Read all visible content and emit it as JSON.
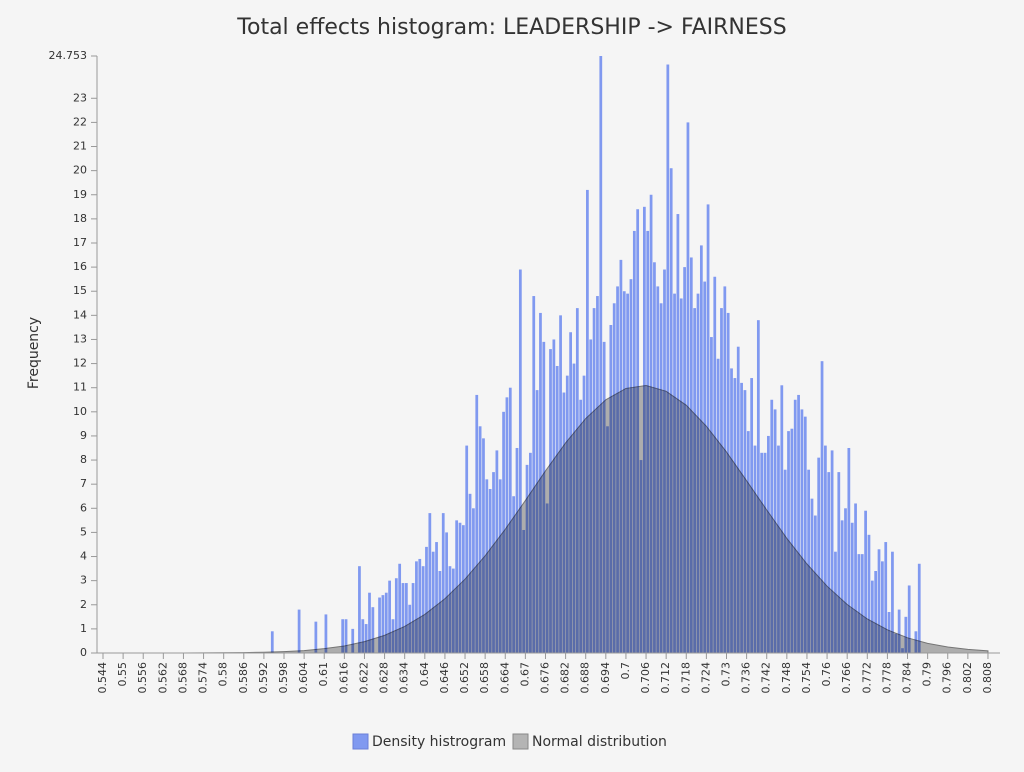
{
  "chart_data": {
    "type": "histogram",
    "title": "Total effects histogram: LEADERSHIP -> FAIRNESS",
    "ylabel": "Frequency",
    "xlim": [
      0.544,
      0.8115
    ],
    "ylim": [
      0,
      24.753
    ],
    "xticks": [
      0.544,
      0.55,
      0.556,
      0.562,
      0.568,
      0.574,
      0.58,
      0.586,
      0.592,
      0.598,
      0.604,
      0.61,
      0.616,
      0.622,
      0.628,
      0.634,
      0.64,
      0.646,
      0.652,
      0.658,
      0.664,
      0.67,
      0.676,
      0.682,
      0.688,
      0.694,
      0.7,
      0.706,
      0.712,
      0.718,
      0.724,
      0.73,
      0.736,
      0.742,
      0.748,
      0.754,
      0.76,
      0.766,
      0.772,
      0.778,
      0.784,
      0.79,
      0.796,
      0.802,
      0.808
    ],
    "yticks": [
      0,
      1,
      2,
      3,
      4,
      5,
      6,
      7,
      8,
      9,
      10,
      11,
      12,
      13,
      14,
      15,
      16,
      17,
      18,
      19,
      20,
      21,
      22,
      23,
      24.753
    ],
    "legend": "bottom",
    "series": [
      {
        "name": "Density histrogram",
        "color": "#8099f0",
        "bins": [
          0.594,
          0.595,
          0.596,
          0.597,
          0.598,
          0.599,
          0.6,
          0.601,
          0.602,
          0.603,
          0.604,
          0.605,
          0.606,
          0.607,
          0.608,
          0.609,
          0.61,
          0.611,
          0.612,
          0.613,
          0.614,
          0.615,
          0.616,
          0.617,
          0.618,
          0.619,
          0.62,
          0.621,
          0.622,
          0.623,
          0.624,
          0.625,
          0.626,
          0.627,
          0.628,
          0.629,
          0.63,
          0.631,
          0.632,
          0.633,
          0.634,
          0.635,
          0.636,
          0.637,
          0.638,
          0.639,
          0.64,
          0.641,
          0.642,
          0.643,
          0.644,
          0.645,
          0.646,
          0.647,
          0.648,
          0.649,
          0.65,
          0.651,
          0.652,
          0.653,
          0.654,
          0.655,
          0.656,
          0.657,
          0.658,
          0.659,
          0.66,
          0.661,
          0.662,
          0.663,
          0.664,
          0.665,
          0.666,
          0.667,
          0.668,
          0.669,
          0.67,
          0.671,
          0.672,
          0.673,
          0.674,
          0.675,
          0.676,
          0.677,
          0.678,
          0.679,
          0.68,
          0.681,
          0.682,
          0.683,
          0.684,
          0.685,
          0.686,
          0.687,
          0.688,
          0.689,
          0.69,
          0.691,
          0.692,
          0.693,
          0.694,
          0.695,
          0.696,
          0.697,
          0.698,
          0.699,
          0.7,
          0.701,
          0.702,
          0.703,
          0.704,
          0.705,
          0.706,
          0.707,
          0.708,
          0.709,
          0.71,
          0.711,
          0.712,
          0.713,
          0.714,
          0.715,
          0.716,
          0.717,
          0.718,
          0.719,
          0.72,
          0.721,
          0.722,
          0.723,
          0.724,
          0.725,
          0.726,
          0.727,
          0.728,
          0.729,
          0.73,
          0.731,
          0.732,
          0.733,
          0.734,
          0.735,
          0.736,
          0.737,
          0.738,
          0.739,
          0.74,
          0.741,
          0.742,
          0.743,
          0.744,
          0.745,
          0.746,
          0.747,
          0.748,
          0.749,
          0.75,
          0.751,
          0.752,
          0.753,
          0.754,
          0.755,
          0.756,
          0.757,
          0.758,
          0.759,
          0.76,
          0.761,
          0.762,
          0.763,
          0.764,
          0.765,
          0.766,
          0.767,
          0.768,
          0.769,
          0.77,
          0.771,
          0.772,
          0.773,
          0.774,
          0.775,
          0.776,
          0.777,
          0.778,
          0.779,
          0.78,
          0.781,
          0.782,
          0.783,
          0.784,
          0.785,
          0.786,
          0.787,
          0.788
        ],
        "values": [
          0.9,
          0,
          0,
          0,
          0,
          0,
          0,
          0,
          1.8,
          0,
          0,
          0,
          0,
          1.3,
          0,
          0,
          1.6,
          0,
          0,
          0,
          0,
          1.4,
          1.4,
          0,
          1.0,
          0,
          3.6,
          1.4,
          1.2,
          2.5,
          1.9,
          0,
          2.3,
          2.4,
          2.5,
          3.0,
          1.4,
          3.1,
          3.7,
          2.9,
          2.9,
          2.0,
          2.9,
          3.8,
          3.9,
          3.6,
          4.4,
          5.8,
          4.2,
          4.6,
          3.4,
          5.8,
          5.0,
          3.6,
          3.5,
          5.5,
          5.4,
          5.3,
          8.6,
          6.6,
          6.0,
          10.7,
          9.4,
          8.9,
          7.2,
          6.8,
          7.5,
          8.4,
          7.2,
          10.0,
          10.6,
          11.0,
          6.5,
          8.5,
          15.9,
          5.1,
          7.8,
          8.3,
          14.8,
          10.9,
          14.1,
          12.9,
          6.2,
          12.6,
          13.0,
          11.9,
          14.0,
          10.8,
          11.5,
          13.3,
          12.0,
          14.3,
          10.5,
          11.5,
          19.2,
          13.0,
          14.3,
          14.8,
          24.753,
          12.9,
          9.4,
          13.6,
          14.5,
          15.2,
          16.3,
          15.0,
          14.9,
          15.5,
          17.5,
          18.4,
          8.0,
          18.5,
          17.5,
          19.0,
          16.2,
          15.2,
          14.5,
          15.9,
          24.4,
          20.1,
          14.9,
          18.2,
          14.7,
          16.0,
          22.0,
          16.4,
          14.3,
          14.9,
          16.9,
          15.4,
          18.6,
          13.1,
          15.6,
          12.2,
          14.3,
          15.2,
          14.1,
          11.8,
          11.4,
          12.7,
          11.2,
          10.9,
          9.2,
          11.4,
          8.6,
          13.8,
          8.3,
          8.3,
          9.0,
          10.5,
          10.1,
          8.6,
          11.1,
          7.6,
          9.2,
          9.3,
          10.5,
          10.7,
          10.1,
          9.8,
          7.6,
          6.4,
          5.7,
          8.1,
          12.1,
          8.6,
          7.5,
          8.4,
          4.2,
          7.5,
          5.5,
          6.0,
          8.5,
          5.4,
          6.2,
          4.1,
          4.1,
          5.9,
          4.9,
          3.0,
          3.4,
          4.3,
          3.8,
          4.6,
          1.7,
          4.2,
          0.8,
          1.8,
          0.2,
          1.5,
          2.8,
          0,
          0.9,
          3.7
        ]
      },
      {
        "name": "Normal distribution",
        "color": "#b4b4b4",
        "x": [
          0.544,
          0.55,
          0.556,
          0.562,
          0.568,
          0.574,
          0.58,
          0.586,
          0.592,
          0.598,
          0.604,
          0.61,
          0.616,
          0.622,
          0.628,
          0.634,
          0.64,
          0.646,
          0.652,
          0.658,
          0.664,
          0.67,
          0.676,
          0.682,
          0.688,
          0.694,
          0.7,
          0.706,
          0.712,
          0.718,
          0.724,
          0.73,
          0.736,
          0.742,
          0.748,
          0.754,
          0.76,
          0.766,
          0.772,
          0.778,
          0.784,
          0.79,
          0.796,
          0.802,
          0.808
        ],
        "values": [
          0.0001,
          0.0002,
          0.0004,
          0.0009,
          0.002,
          0.004,
          0.009,
          0.017,
          0.032,
          0.058,
          0.1,
          0.18,
          0.29,
          0.47,
          0.73,
          1.1,
          1.6,
          2.25,
          3.06,
          4.03,
          5.13,
          6.32,
          7.55,
          8.71,
          9.72,
          10.5,
          10.97,
          11.09,
          10.85,
          10.27,
          9.4,
          8.33,
          7.14,
          5.93,
          4.75,
          3.69,
          2.77,
          2.01,
          1.41,
          0.96,
          0.63,
          0.4,
          0.25,
          0.15,
          0.09
        ]
      }
    ]
  }
}
